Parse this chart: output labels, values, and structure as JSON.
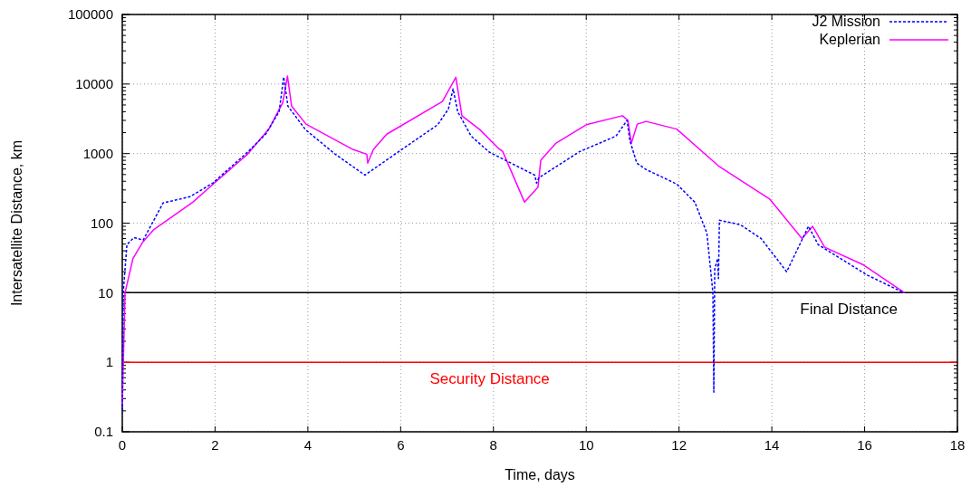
{
  "chart_data": {
    "type": "line",
    "xlabel": "Time, days",
    "ylabel": "Intersatellite Distance, km",
    "log": "y",
    "grid": true,
    "legend": "top right",
    "xlim": [
      0,
      18
    ],
    "xticks": [
      0,
      2,
      4,
      6,
      8,
      10,
      12,
      14,
      16,
      18
    ],
    "ylim": [
      0.1,
      100000
    ],
    "yticks": [
      0.1,
      1,
      10,
      100,
      1000,
      10000,
      100000
    ],
    "series": [
      {
        "name": "J2 Mission",
        "color": "#0000ff",
        "line_style": "dashed",
        "x": [
          0,
          0.02,
          0.1,
          0.25,
          0.45,
          0.88,
          1.46,
          1.95,
          2.7,
          3.09,
          3.38,
          3.48,
          3.57,
          3.95,
          4.59,
          5.23,
          5.96,
          6.8,
          7.03,
          7.13,
          7.23,
          7.52,
          7.91,
          8.89,
          8.93,
          8.98,
          9.86,
          10.64,
          10.88,
          10.94,
          11.09,
          11.29,
          11.95,
          12.34,
          12.6,
          12.73,
          12.75,
          12.77,
          12.83,
          12.85,
          12.87,
          13.32,
          13.77,
          14.32,
          14.79,
          15.0,
          16.05,
          16.84
        ],
        "values": [
          0.2,
          10,
          49,
          62,
          57,
          195,
          240,
          376,
          1050,
          1900,
          4000,
          12600,
          4800,
          2200,
          980,
          490,
          1070,
          2600,
          4400,
          8500,
          4000,
          1780,
          1050,
          490,
          376,
          450,
          1070,
          1780,
          3000,
          1540,
          730,
          590,
          365,
          200,
          72,
          10,
          0.37,
          22,
          31,
          16,
          110,
          95,
          60,
          20,
          90,
          49,
          18,
          10
        ]
      },
      {
        "name": "Keplerian",
        "color": "#ff00ff",
        "line_style": "solid",
        "x": [
          0,
          0.06,
          0.23,
          0.43,
          0.68,
          1.52,
          1.95,
          2.7,
          3.16,
          3.46,
          3.56,
          3.65,
          3.96,
          4.98,
          5.27,
          5.29,
          5.41,
          5.7,
          6.9,
          7.19,
          7.32,
          7.71,
          8.1,
          8.2,
          8.67,
          8.96,
          9.02,
          9.34,
          10.0,
          10.78,
          10.9,
          10.97,
          11.1,
          11.29,
          11.95,
          12.85,
          13.96,
          14.65,
          14.88,
          15.14,
          15.98,
          16.86
        ],
        "values": [
          0.25,
          10,
          31,
          52,
          81,
          200,
          360,
          980,
          2250,
          5400,
          13000,
          4800,
          2650,
          1140,
          980,
          730,
          1140,
          1900,
          5600,
          12500,
          3500,
          2200,
          1200,
          1070,
          200,
          330,
          800,
          1400,
          2600,
          3500,
          3000,
          1400,
          2650,
          2900,
          2250,
          665,
          220,
          60,
          90,
          45,
          25,
          10
        ]
      }
    ],
    "ref_lines": [
      {
        "axis": "y",
        "value": 10,
        "label": "Final Distance",
        "color": "#000000"
      },
      {
        "axis": "y",
        "value": 1,
        "label": "Security Distance",
        "color": "#ff0000"
      }
    ]
  }
}
